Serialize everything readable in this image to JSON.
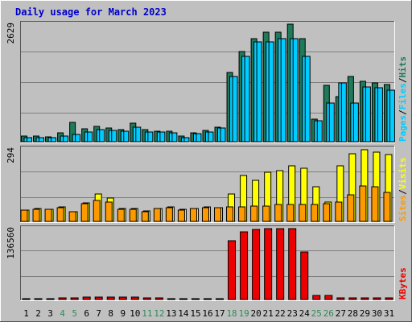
{
  "title": "Daily usage for March 2023",
  "colors": {
    "background": "#C0C0C0",
    "plot_bg": "#C0C0C0",
    "gridline": "#7F7F7F",
    "frame_dark": "#555555",
    "frame_light": "#FFFFFF",
    "title": "#0000CC",
    "hits": "#1F7A5A",
    "files": "#00CCFF",
    "pages": "#00CCFF",
    "visits": "#FFFF00",
    "sites": "#FF9900",
    "kbytes": "#EE0000",
    "weekend_label": "#2E8B57",
    "weekday_label": "#000000"
  },
  "chart_data": [
    {
      "type": "bar",
      "panel": "hits-files-pages",
      "ylabel_max": "2629",
      "ylim": [
        0,
        2629
      ],
      "categories": [
        "1",
        "2",
        "3",
        "4",
        "5",
        "6",
        "7",
        "8",
        "9",
        "10",
        "11",
        "12",
        "13",
        "14",
        "15",
        "16",
        "17",
        "18",
        "19",
        "20",
        "21",
        "22",
        "23",
        "24",
        "25",
        "26",
        "27",
        "28",
        "29",
        "30",
        "31"
      ],
      "series": [
        {
          "name": "Hits",
          "color": "#1F7A5A",
          "values": [
            125,
            125,
            110,
            190,
            440,
            280,
            340,
            300,
            270,
            420,
            270,
            240,
            230,
            120,
            200,
            260,
            330,
            1540,
            2010,
            2310,
            2450,
            2450,
            2630,
            2300,
            500,
            1260,
            1000,
            1460,
            1350,
            1310,
            1270
          ]
        },
        {
          "name": "Files",
          "color": "#00CCFF",
          "values": [
            90,
            90,
            90,
            130,
            170,
            210,
            270,
            250,
            240,
            330,
            225,
            210,
            200,
            90,
            180,
            210,
            310,
            1450,
            1900,
            2240,
            2240,
            2300,
            2300,
            1900,
            470,
            860,
            1320,
            870,
            1230,
            1200,
            1150
          ]
        },
        {
          "name": "Pages",
          "color": "#00CCFF",
          "values": [
            90,
            90,
            90,
            130,
            170,
            210,
            270,
            250,
            240,
            330,
            225,
            210,
            200,
            90,
            180,
            210,
            310,
            1450,
            1900,
            2240,
            2240,
            2300,
            2300,
            1900,
            470,
            860,
            1320,
            870,
            1230,
            1200,
            1150
          ]
        }
      ],
      "legend_side": [
        "Pages",
        "/",
        "Files",
        "/",
        "Hits"
      ]
    },
    {
      "type": "bar",
      "panel": "visits-sites",
      "ylabel_max": "294",
      "ylim": [
        0,
        294
      ],
      "categories": [
        "1",
        "2",
        "3",
        "4",
        "5",
        "6",
        "7",
        "8",
        "9",
        "10",
        "11",
        "12",
        "13",
        "14",
        "15",
        "16",
        "17",
        "18",
        "19",
        "20",
        "21",
        "22",
        "23",
        "24",
        "25",
        "26",
        "27",
        "28",
        "29",
        "30",
        "31"
      ],
      "series": [
        {
          "name": "Visits",
          "color": "#FFFF00",
          "values": [
            46,
            52,
            50,
            58,
            38,
            75,
            110,
            95,
            53,
            52,
            44,
            53,
            59,
            48,
            53,
            60,
            57,
            110,
            185,
            168,
            200,
            205,
            225,
            215,
            140,
            78,
            225,
            275,
            290,
            282,
            270
          ]
        },
        {
          "name": "Sites",
          "color": "#FF9900",
          "values": [
            46,
            50,
            48,
            56,
            38,
            72,
            85,
            80,
            50,
            50,
            40,
            52,
            56,
            46,
            52,
            56,
            56,
            60,
            60,
            62,
            62,
            68,
            68,
            70,
            70,
            72,
            80,
            108,
            145,
            140,
            118
          ]
        }
      ],
      "legend_side": [
        "Sites",
        "/",
        "Visits"
      ]
    },
    {
      "type": "bar",
      "panel": "kbytes",
      "ylabel_max": "136560",
      "ylim": [
        0,
        136560
      ],
      "categories": [
        "1",
        "2",
        "3",
        "4",
        "5",
        "6",
        "7",
        "8",
        "9",
        "10",
        "11",
        "12",
        "13",
        "14",
        "15",
        "16",
        "17",
        "18",
        "19",
        "20",
        "21",
        "22",
        "23",
        "24",
        "25",
        "26",
        "27",
        "28",
        "29",
        "30",
        "31"
      ],
      "series": [
        {
          "name": "KBytes",
          "color": "#EE0000",
          "values": [
            2000,
            2000,
            2000,
            3000,
            3000,
            4000,
            5000,
            4000,
            4000,
            4000,
            3000,
            3000,
            2000,
            2000,
            2000,
            2000,
            2000,
            113000,
            131000,
            135000,
            136560,
            136560,
            136560,
            92000,
            7000,
            8000,
            3000,
            3000,
            3000,
            3000,
            3000
          ]
        }
      ],
      "legend_side": [
        "KBytes"
      ]
    }
  ],
  "weekend_days": [
    "4",
    "5",
    "11",
    "12",
    "18",
    "19",
    "25",
    "26"
  ]
}
